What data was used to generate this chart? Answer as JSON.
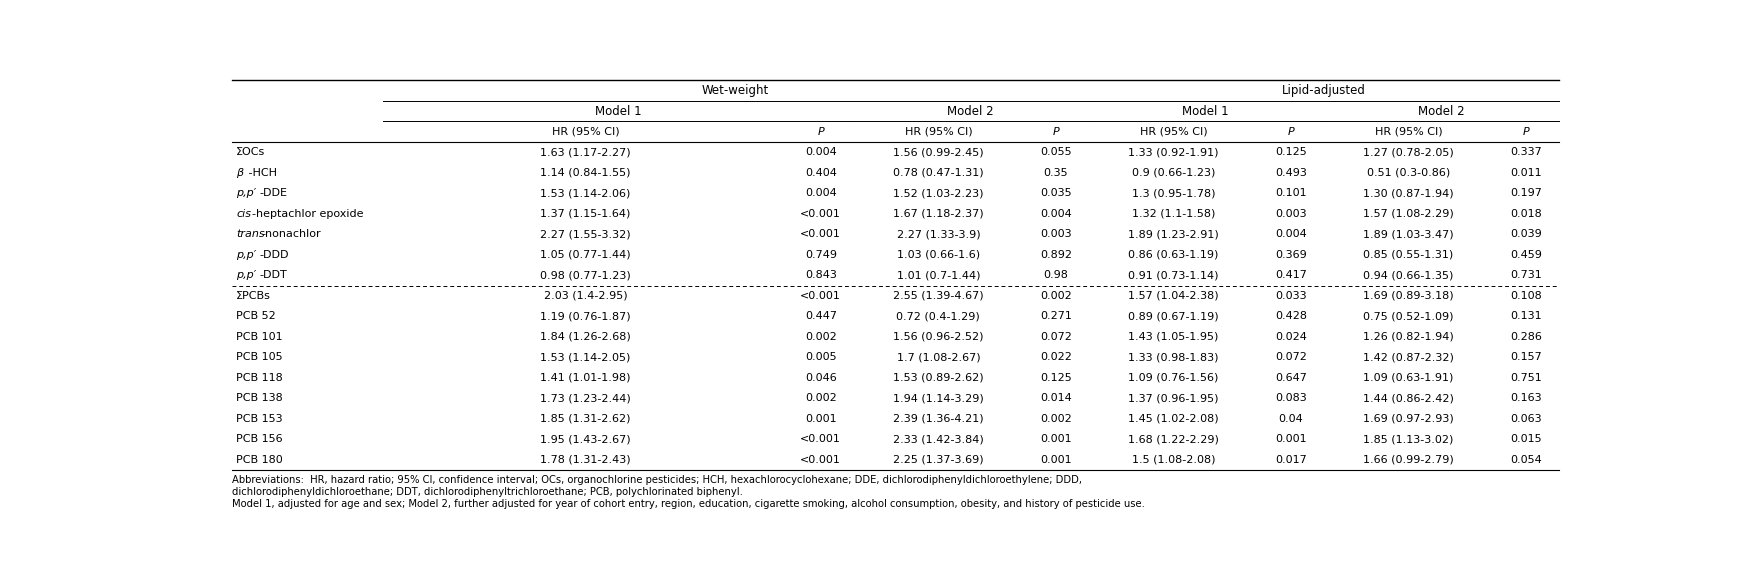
{
  "col_groups": [
    "Wet-weight",
    "Lipid-adjusted"
  ],
  "sub_groups": [
    "Model 1",
    "Model 2"
  ],
  "col_headers": [
    "HR (95% CI)",
    "P",
    "HR (95% CI)",
    "P",
    "HR (95% CI)",
    "P",
    "HR (95% CI)",
    "P"
  ],
  "row_labels": [
    "ΣOCs",
    "β -HCH",
    "p,p′-DDE",
    "cis-heptachlor epoxide",
    "trans-nonachlor",
    "p,p′-DDD",
    "p,p′-DDT",
    "ΣPCBs",
    "PCB 52",
    "PCB 101",
    "PCB 105",
    "PCB 118",
    "PCB 138",
    "PCB 153",
    "PCB 156",
    "PCB 180"
  ],
  "data": [
    [
      "1.63 (1.17-2.27)",
      "0.004",
      "1.56 (0.99-2.45)",
      "0.055",
      "1.33 (0.92-1.91)",
      "0.125",
      "1.27 (0.78-2.05)",
      "0.337"
    ],
    [
      "1.14 (0.84-1.55)",
      "0.404",
      "0.78 (0.47-1.31)",
      "0.35",
      "0.9 (0.66-1.23)",
      "0.493",
      "0.51 (0.3-0.86)",
      "0.011"
    ],
    [
      "1.53 (1.14-2.06)",
      "0.004",
      "1.52 (1.03-2.23)",
      "0.035",
      "1.3 (0.95-1.78)",
      "0.101",
      "1.30 (0.87-1.94)",
      "0.197"
    ],
    [
      "1.37 (1.15-1.64)",
      "<0.001",
      "1.67 (1.18-2.37)",
      "0.004",
      "1.32 (1.1-1.58)",
      "0.003",
      "1.57 (1.08-2.29)",
      "0.018"
    ],
    [
      "2.27 (1.55-3.32)",
      "<0.001",
      "2.27 (1.33-3.9)",
      "0.003",
      "1.89 (1.23-2.91)",
      "0.004",
      "1.89 (1.03-3.47)",
      "0.039"
    ],
    [
      "1.05 (0.77-1.44)",
      "0.749",
      "1.03 (0.66-1.6)",
      "0.892",
      "0.86 (0.63-1.19)",
      "0.369",
      "0.85 (0.55-1.31)",
      "0.459"
    ],
    [
      "0.98 (0.77-1.23)",
      "0.843",
      "1.01 (0.7-1.44)",
      "0.98",
      "0.91 (0.73-1.14)",
      "0.417",
      "0.94 (0.66-1.35)",
      "0.731"
    ],
    [
      "2.03 (1.4-2.95)",
      "<0.001",
      "2.55 (1.39-4.67)",
      "0.002",
      "1.57 (1.04-2.38)",
      "0.033",
      "1.69 (0.89-3.18)",
      "0.108"
    ],
    [
      "1.19 (0.76-1.87)",
      "0.447",
      "0.72 (0.4-1.29)",
      "0.271",
      "0.89 (0.67-1.19)",
      "0.428",
      "0.75 (0.52-1.09)",
      "0.131"
    ],
    [
      "1.84 (1.26-2.68)",
      "0.002",
      "1.56 (0.96-2.52)",
      "0.072",
      "1.43 (1.05-1.95)",
      "0.024",
      "1.26 (0.82-1.94)",
      "0.286"
    ],
    [
      "1.53 (1.14-2.05)",
      "0.005",
      "1.7 (1.08-2.67)",
      "0.022",
      "1.33 (0.98-1.83)",
      "0.072",
      "1.42 (0.87-2.32)",
      "0.157"
    ],
    [
      "1.41 (1.01-1.98)",
      "0.046",
      "1.53 (0.89-2.62)",
      "0.125",
      "1.09 (0.76-1.56)",
      "0.647",
      "1.09 (0.63-1.91)",
      "0.751"
    ],
    [
      "1.73 (1.23-2.44)",
      "0.002",
      "1.94 (1.14-3.29)",
      "0.014",
      "1.37 (0.96-1.95)",
      "0.083",
      "1.44 (0.86-2.42)",
      "0.163"
    ],
    [
      "1.85 (1.31-2.62)",
      "0.001",
      "2.39 (1.36-4.21)",
      "0.002",
      "1.45 (1.02-2.08)",
      "0.04",
      "1.69 (0.97-2.93)",
      "0.063"
    ],
    [
      "1.95 (1.43-2.67)",
      "<0.001",
      "2.33 (1.42-3.84)",
      "0.001",
      "1.68 (1.22-2.29)",
      "0.001",
      "1.85 (1.13-3.02)",
      "0.015"
    ],
    [
      "1.78 (1.31-2.43)",
      "<0.001",
      "2.25 (1.37-3.69)",
      "0.001",
      "1.5 (1.08-2.08)",
      "0.017",
      "1.66 (0.99-2.79)",
      "0.054"
    ]
  ],
  "footnote1": "Abbreviations:  HR, hazard ratio; 95% CI, confidence interval; OCs, organochlorine pesticides; HCH, hexachlorocyclohexane; DDE, dichlorodiphenyldichloroethylene; DDD,",
  "footnote2": "dichlorodiphenyldichloroethane; DDT, dichlorodiphenyltrichloroethane; PCB, polychlorinated biphenyl.",
  "footnote3": "Model 1, adjusted for age and sex; Model 2, further adjusted for year of cohort entry, region, education, cigarette smoking, alcohol consumption, obesity, and history of pesticide use.",
  "separator_after_row": 7,
  "bg_color": "#ffffff",
  "table_font_size": 8.0,
  "footnote_font_size": 7.2,
  "header_font_size": 8.5
}
